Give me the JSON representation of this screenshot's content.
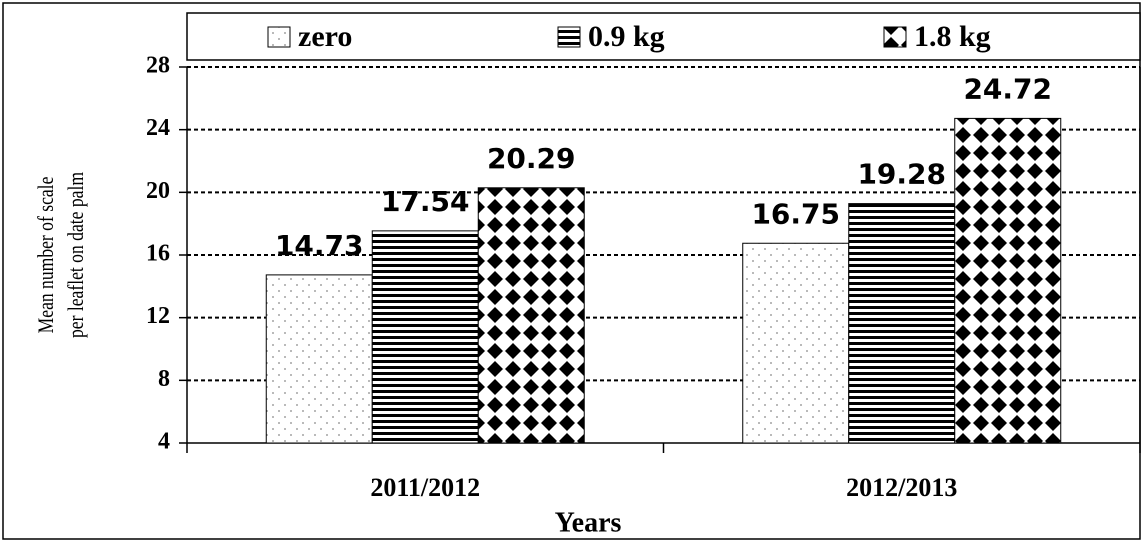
{
  "chart_data": {
    "type": "bar",
    "y_label": [
      "Mean number of scale",
      "per leaflet on date palm"
    ],
    "x_label": "Years",
    "categories": [
      "2011/2012",
      "2012/2013"
    ],
    "series": [
      {
        "name": "zero",
        "pattern": "dots",
        "values": [
          14.73,
          16.75
        ]
      },
      {
        "name": "0.9 kg",
        "pattern": "stripes",
        "values": [
          17.54,
          19.28
        ]
      },
      {
        "name": "1.8 kg",
        "pattern": "diamonds",
        "values": [
          20.29,
          24.72
        ]
      }
    ],
    "ylim": [
      4,
      28
    ],
    "yticks": [
      4,
      8,
      12,
      16,
      20,
      24,
      28
    ],
    "grid": true,
    "legend": "top"
  }
}
